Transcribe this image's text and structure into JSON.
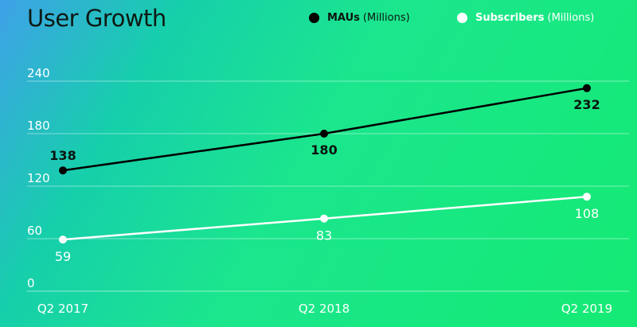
{
  "title": "User Growth",
  "colors": {
    "mau": "#000000",
    "subscribers": "#ffffff",
    "gridline": "#ffffff",
    "background_start": "#3fa1e9",
    "background_end": "#14ea73"
  },
  "legend": {
    "mau": {
      "name": "MAUs",
      "unit": "(Millions)"
    },
    "subscribers": {
      "name": "Subscribers",
      "unit": "(Millions)"
    }
  },
  "chart_data": {
    "type": "line",
    "title": "User Growth",
    "categories": [
      "Q2 2017",
      "Q2 2018",
      "Q2 2019"
    ],
    "ylim": [
      0,
      240
    ],
    "yticks": [
      0,
      60,
      120,
      180,
      240
    ],
    "grid": true,
    "legend_position": "top-right",
    "series": [
      {
        "name": "MAUs (Millions)",
        "values": [
          138,
          180,
          232
        ],
        "color": "#000000"
      },
      {
        "name": "Subscribers (Millions)",
        "values": [
          59,
          83,
          108
        ],
        "color": "#ffffff"
      }
    ]
  }
}
